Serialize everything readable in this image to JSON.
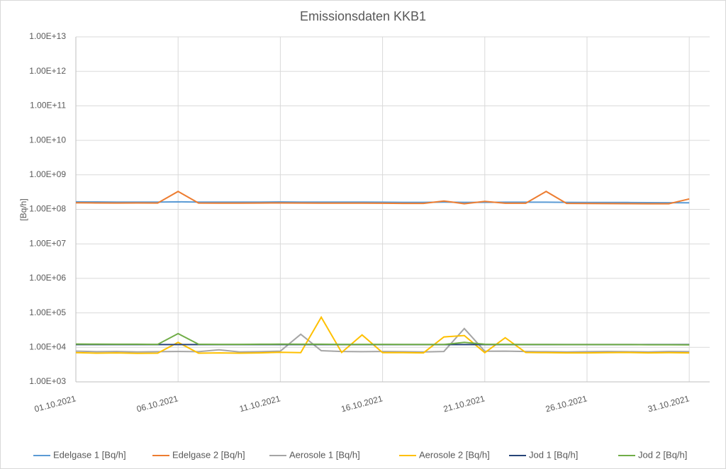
{
  "chart_data": {
    "type": "line",
    "title": "Emissionsdaten KKB1",
    "y_label": "[Bq/h]",
    "log_scale": true,
    "grid": true,
    "legend": "bottom",
    "x": [
      "01.10.2021",
      "02.10.2021",
      "03.10.2021",
      "04.10.2021",
      "05.10.2021",
      "06.10.2021",
      "07.10.2021",
      "08.10.2021",
      "09.10.2021",
      "10.10.2021",
      "11.10.2021",
      "12.10.2021",
      "13.10.2021",
      "14.10.2021",
      "15.10.2021",
      "16.10.2021",
      "17.10.2021",
      "18.10.2021",
      "19.10.2021",
      "20.10.2021",
      "21.10.2021",
      "22.10.2021",
      "23.10.2021",
      "24.10.2021",
      "25.10.2021",
      "26.10.2021",
      "27.10.2021",
      "28.10.2021",
      "29.10.2021",
      "30.10.2021",
      "31.10.2021"
    ],
    "xlim": [
      "01.10.2021",
      "01.11.2021"
    ],
    "xticks": [
      "01.10.2021",
      "06.10.2021",
      "11.10.2021",
      "16.10.2021",
      "21.10.2021",
      "26.10.2021",
      "31.10.2021"
    ],
    "ylim": [
      1000,
      10000000000000
    ],
    "yticks": [
      {
        "value": 1000,
        "label": "1.00E+03"
      },
      {
        "value": 10000,
        "label": "1.00E+04"
      },
      {
        "value": 100000,
        "label": "1.00E+05"
      },
      {
        "value": 1000000,
        "label": "1.00E+06"
      },
      {
        "value": 10000000,
        "label": "1.00E+07"
      },
      {
        "value": 100000000,
        "label": "1.00E+08"
      },
      {
        "value": 1000000000,
        "label": "1.00E+09"
      },
      {
        "value": 10000000000,
        "label": "1.00E+10"
      },
      {
        "value": 100000000000,
        "label": "1.00E+11"
      },
      {
        "value": 1000000000000,
        "label": "1.00E+12"
      },
      {
        "value": 10000000000000,
        "label": "1.00E+13"
      }
    ],
    "series": [
      {
        "name": "Edelgase 1 [Bq/h]",
        "color": "#5b9bd5",
        "values": [
          165000000,
          164000000,
          163000000,
          163000000,
          162000000,
          165000000,
          163000000,
          162000000,
          162000000,
          163000000,
          164000000,
          163000000,
          162000000,
          162000000,
          162000000,
          161000000,
          160000000,
          160000000,
          162000000,
          160000000,
          160000000,
          161000000,
          161000000,
          161000000,
          160000000,
          159000000,
          158000000,
          158000000,
          157000000,
          156000000,
          155000000
        ]
      },
      {
        "name": "Edelgase 2 [Bq/h]",
        "color": "#ed7d31",
        "values": [
          155000000,
          153000000,
          152000000,
          153000000,
          152000000,
          330000000,
          152000000,
          151000000,
          151000000,
          152000000,
          153000000,
          152000000,
          151000000,
          151000000,
          151000000,
          150000000,
          149000000,
          149000000,
          175000000,
          145000000,
          170000000,
          150000000,
          150000000,
          330000000,
          149000000,
          148000000,
          147000000,
          146000000,
          145000000,
          145000000,
          200000000
        ]
      },
      {
        "name": "Aerosole 1 [Bq/h]",
        "color": "#a5a5a5",
        "values": [
          7800,
          7500,
          7600,
          7400,
          7500,
          7600,
          7500,
          8500,
          7400,
          7500,
          7800,
          24000,
          8000,
          7600,
          7500,
          7600,
          7500,
          7400,
          7600,
          35000,
          7700,
          7800,
          7600,
          7500,
          7400,
          7500,
          7600,
          7500,
          7400,
          7600,
          7500
        ]
      },
      {
        "name": "Aerosole 2 [Bq/h]",
        "color": "#ffc000",
        "values": [
          7000,
          6800,
          6900,
          6700,
          6800,
          14000,
          6800,
          6900,
          6800,
          6900,
          7200,
          7000,
          75000,
          7100,
          23000,
          7000,
          7000,
          6900,
          20000,
          22000,
          7000,
          19000,
          7100,
          7000,
          6900,
          6900,
          7000,
          7100,
          6900,
          7000,
          6900
        ]
      },
      {
        "name": "Jod 1 [Bq/h]",
        "color": "#264478",
        "values": [
          12000,
          12000,
          12000,
          12000,
          12000,
          12000,
          12000,
          12000,
          12000,
          12000,
          12000,
          12000,
          12000,
          12000,
          12000,
          12000,
          12000,
          12000,
          12000,
          12000,
          12000,
          12000,
          12000,
          12000,
          12000,
          12000,
          12000,
          12000,
          12000,
          12000,
          12000
        ]
      },
      {
        "name": "Jod 2 [Bq/h]",
        "color": "#70ad47",
        "values": [
          12500,
          12400,
          12300,
          12300,
          12200,
          25000,
          12300,
          12200,
          12200,
          12300,
          12400,
          12300,
          12300,
          12200,
          12200,
          12200,
          12100,
          12100,
          12100,
          14000,
          12300,
          12200,
          12100,
          12100,
          12000,
          12000,
          12000,
          12000,
          11900,
          11900,
          11800
        ]
      }
    ]
  }
}
